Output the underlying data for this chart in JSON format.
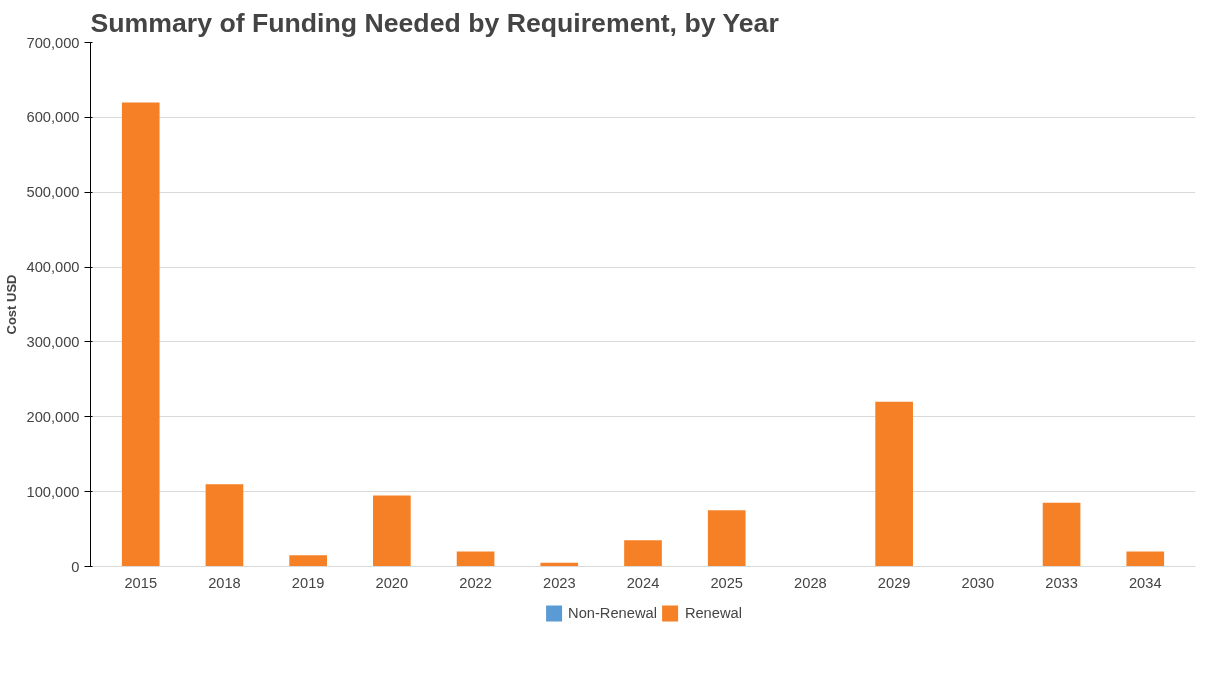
{
  "chart_data": {
    "type": "bar",
    "title": "Summary of Funding Needed by Requirement, by Year",
    "ylabel": "Cost USD",
    "categories": [
      "2015",
      "2018",
      "2019",
      "2020",
      "2022",
      "2023",
      "2024",
      "2025",
      "2028",
      "2029",
      "2030",
      "2033",
      "2034"
    ],
    "stacked": true,
    "series": [
      {
        "name": "Non-Renewal",
        "color": "#5b9bd5",
        "values": [
          0,
          0,
          0,
          0,
          0,
          0,
          0,
          0,
          0,
          0,
          0,
          0,
          0
        ]
      },
      {
        "name": "Renewal",
        "color": "#f58025",
        "values": [
          620000,
          110000,
          15000,
          95000,
          20000,
          5000,
          35000,
          75000,
          0,
          220000,
          0,
          85000,
          20000
        ]
      }
    ],
    "ylim": [
      0,
      700000
    ],
    "yticks": [
      {
        "value": 0,
        "label": "0"
      },
      {
        "value": 100000,
        "label": "100,000"
      },
      {
        "value": 200000,
        "label": "200,000"
      },
      {
        "value": 300000,
        "label": "300,000"
      },
      {
        "value": 400000,
        "label": "400,000"
      },
      {
        "value": 500000,
        "label": "500,000"
      },
      {
        "value": 600000,
        "label": "600,000"
      },
      {
        "value": 700000,
        "label": "700,000"
      }
    ],
    "grid": "y",
    "legend": "bottom"
  }
}
